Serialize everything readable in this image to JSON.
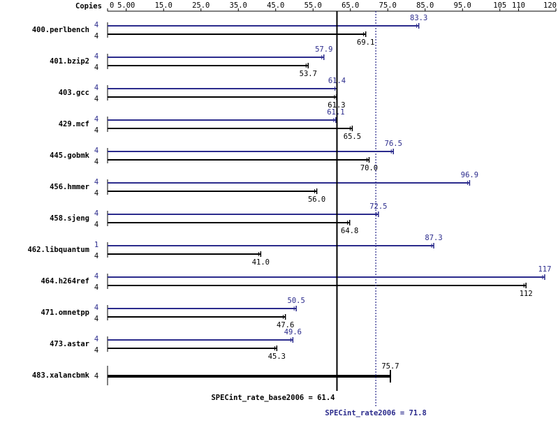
{
  "chart_data": {
    "type": "bar",
    "orientation": "horizontal",
    "copies_label": "Copies",
    "categories": [
      "400.perlbench",
      "401.bzip2",
      "403.gcc",
      "429.mcf",
      "445.gobmk",
      "456.hmmer",
      "458.sjeng",
      "462.libquantum",
      "464.h264ref",
      "471.omnetpp",
      "473.astar",
      "483.xalancbmk"
    ],
    "series": [
      {
        "color": "#2b2b8c",
        "copies": [
          4,
          4,
          4,
          4,
          4,
          4,
          4,
          1,
          4,
          4,
          4,
          null
        ],
        "values": [
          83.3,
          57.9,
          61.4,
          61.1,
          76.5,
          96.9,
          72.5,
          87.3,
          117,
          50.5,
          49.6,
          null
        ]
      },
      {
        "color": "#000000",
        "copies": [
          4,
          4,
          4,
          4,
          4,
          4,
          4,
          4,
          4,
          4,
          4,
          4
        ],
        "values": [
          69.1,
          53.7,
          61.3,
          65.5,
          70,
          56,
          64.8,
          41,
          112,
          47.6,
          45.3,
          75.7
        ],
        "value_labels": [
          "69.1",
          "53.7",
          "61.3",
          "65.5",
          "70.0",
          "56.0",
          "64.8",
          "41.0",
          "112",
          "47.6",
          "45.3",
          "75.7"
        ]
      }
    ],
    "xlim": [
      0,
      120
    ],
    "xticks": [
      0,
      {
        "value": 5,
        "label": "5.00"
      },
      {
        "value": 15,
        "label": "15.0"
      },
      {
        "value": 25,
        "label": "25.0"
      },
      {
        "value": 35,
        "label": "35.0"
      },
      {
        "value": 45,
        "label": "45.0"
      },
      {
        "value": 55,
        "label": "55.0"
      },
      {
        "value": 65,
        "label": "65.0"
      },
      {
        "value": 75,
        "label": "75.0"
      },
      {
        "value": 85,
        "label": "85.0"
      },
      {
        "value": 95,
        "label": "95.0"
      },
      105,
      110,
      120
    ],
    "reference_lines": [
      {
        "label": "SPECint_rate_base2006 = 61.4",
        "value": 61.4,
        "color": "#000000",
        "style": "solid"
      },
      {
        "label": "SPECint_rate2006 = 71.8",
        "value": 71.8,
        "color": "#2b2b8c",
        "style": "dotted"
      }
    ]
  }
}
